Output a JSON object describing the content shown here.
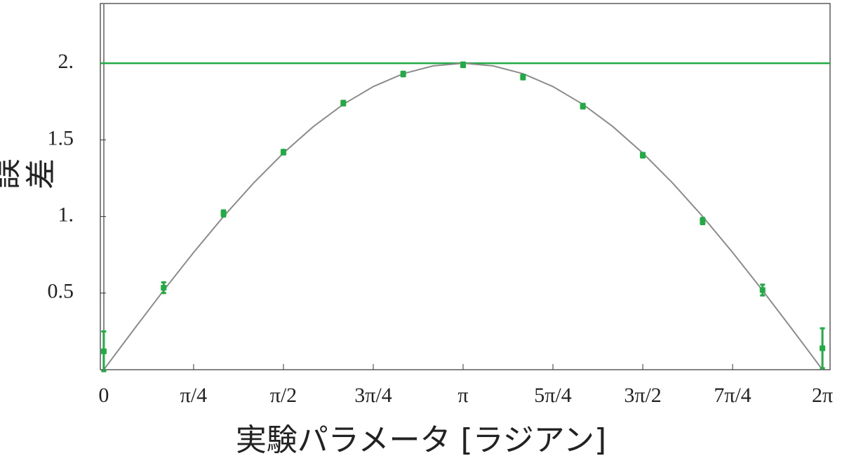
{
  "chart_data": {
    "type": "scatter",
    "xlabel": "実験パラメータ [ラジアン]",
    "ylabel": "誤差",
    "xlim": [
      -0.03,
      6.35
    ],
    "ylim": [
      0,
      2.39
    ],
    "xticks": [
      {
        "value": 0,
        "label": "0"
      },
      {
        "value": 0.7854,
        "label": "π/4"
      },
      {
        "value": 1.5708,
        "label": "π/2"
      },
      {
        "value": 2.3562,
        "label": "3π/4"
      },
      {
        "value": 3.1416,
        "label": "π"
      },
      {
        "value": 3.927,
        "label": "5π/4"
      },
      {
        "value": 4.7124,
        "label": "3π/2"
      },
      {
        "value": 5.4978,
        "label": "7π/4"
      },
      {
        "value": 6.2832,
        "label": "2π"
      }
    ],
    "yticks": [
      0.5,
      {
        "value": 1,
        "label": "1."
      },
      1.5,
      {
        "value": 2,
        "label": "2."
      }
    ],
    "reference_line": {
      "value": 2,
      "color": "#22aa44"
    },
    "curve": {
      "color": "#8c8c8c",
      "x": [
        0,
        0.2618,
        0.5236,
        0.7854,
        1.0472,
        1.309,
        1.5708,
        1.8326,
        2.0944,
        2.3562,
        2.618,
        2.8798,
        3.1416,
        3.4034,
        3.6652,
        3.927,
        4.1888,
        4.4506,
        4.7124,
        4.9742,
        5.236,
        5.4978,
        5.7596,
        6.0214,
        6.2832
      ],
      "values": [
        0,
        0.2611,
        0.5176,
        0.7654,
        1.0,
        1.2175,
        1.4142,
        1.5867,
        1.7321,
        1.8478,
        1.9319,
        1.9829,
        2,
        1.9829,
        1.9319,
        1.8478,
        1.7321,
        1.5867,
        1.4142,
        1.2175,
        1.0,
        0.7654,
        0.5176,
        0.2611,
        0
      ]
    },
    "points": {
      "color": "#22aa44",
      "x": [
        0,
        0.5236,
        1.0472,
        1.5708,
        2.0944,
        2.618,
        3.1416,
        3.6652,
        4.1888,
        4.7124,
        5.236,
        5.7596,
        6.2832
      ],
      "values": [
        0.12,
        0.535,
        1.02,
        1.42,
        1.74,
        1.93,
        1.99,
        1.91,
        1.72,
        1.4,
        0.97,
        0.52,
        0.14
      ],
      "errors": [
        0.13,
        0.035,
        0.02,
        0.015,
        0.015,
        0.015,
        0.015,
        0.015,
        0.015,
        0.015,
        0.02,
        0.035,
        0.13
      ]
    }
  }
}
